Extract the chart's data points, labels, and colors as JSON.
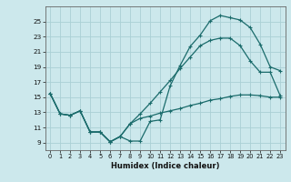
{
  "xlabel": "Humidex (Indice chaleur)",
  "bg_color": "#cce8ec",
  "grid_color": "#aad0d5",
  "line_color": "#1a6b6b",
  "xlim": [
    -0.5,
    23.5
  ],
  "ylim": [
    8,
    27
  ],
  "xticks": [
    0,
    1,
    2,
    3,
    4,
    5,
    6,
    7,
    8,
    9,
    10,
    11,
    12,
    13,
    14,
    15,
    16,
    17,
    18,
    19,
    20,
    21,
    22,
    23
  ],
  "yticks": [
    9,
    11,
    13,
    15,
    17,
    19,
    21,
    23,
    25
  ],
  "line1_x": [
    0,
    1,
    2,
    3,
    4,
    5,
    6,
    7,
    8,
    9,
    10,
    11,
    12,
    13,
    14,
    15,
    16,
    17,
    18,
    19,
    20,
    21,
    22,
    23
  ],
  "line1_y": [
    15.5,
    12.8,
    12.6,
    13.2,
    10.4,
    10.4,
    9.1,
    9.8,
    9.2,
    9.2,
    11.8,
    12.0,
    16.5,
    19.2,
    21.7,
    23.2,
    25.1,
    25.8,
    25.5,
    25.2,
    24.2,
    22.0,
    19.0,
    18.5
  ],
  "line2_x": [
    0,
    1,
    2,
    3,
    4,
    5,
    6,
    7,
    8,
    9,
    10,
    11,
    12,
    13,
    14,
    15,
    16,
    17,
    18,
    19,
    20,
    21,
    22,
    23
  ],
  "line2_y": [
    15.5,
    12.8,
    12.6,
    13.2,
    10.4,
    10.4,
    9.1,
    9.8,
    11.5,
    12.8,
    14.2,
    15.7,
    17.2,
    18.8,
    20.3,
    21.8,
    22.5,
    22.8,
    22.8,
    21.8,
    19.8,
    18.3,
    18.3,
    15.2
  ],
  "line3_x": [
    0,
    1,
    2,
    3,
    4,
    5,
    6,
    7,
    8,
    9,
    10,
    11,
    12,
    13,
    14,
    15,
    16,
    17,
    18,
    19,
    20,
    21,
    22,
    23
  ],
  "line3_y": [
    15.5,
    12.8,
    12.6,
    13.2,
    10.4,
    10.4,
    9.1,
    9.8,
    11.5,
    12.2,
    12.5,
    12.9,
    13.2,
    13.5,
    13.9,
    14.2,
    14.6,
    14.8,
    15.1,
    15.3,
    15.3,
    15.2,
    15.0,
    15.0
  ]
}
